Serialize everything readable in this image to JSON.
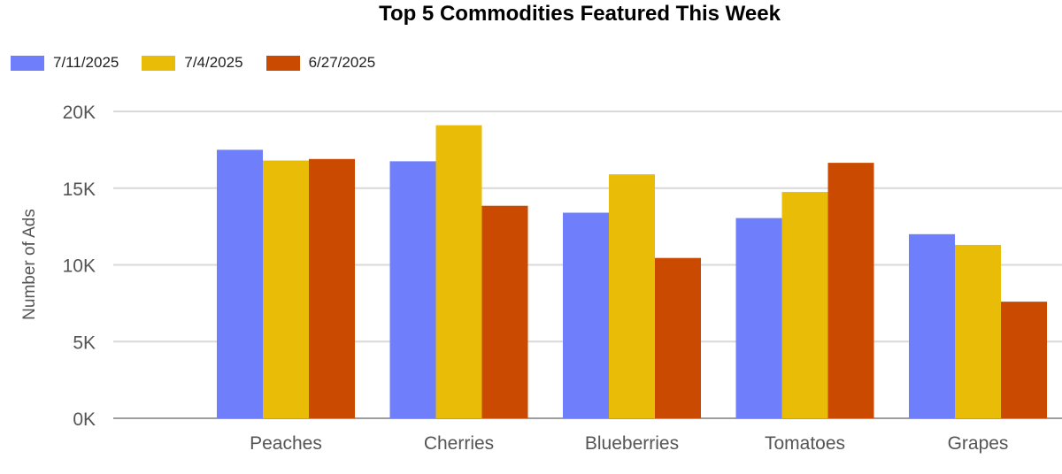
{
  "chart_data": {
    "type": "bar",
    "title": "Top 5 Commodities Featured This Week",
    "xlabel": "",
    "ylabel": "Number of Ads",
    "categories": [
      "Peaches",
      "Cherries",
      "Blueberries",
      "Tomatoes",
      "Grapes"
    ],
    "series": [
      {
        "name": "7/11/2025",
        "color": "#6f7ffb",
        "values": [
          17500,
          16750,
          13400,
          13050,
          12000
        ]
      },
      {
        "name": "7/4/2025",
        "color": "#e8bc07",
        "values": [
          16800,
          19100,
          15900,
          14750,
          11300
        ]
      },
      {
        "name": "6/27/2025",
        "color": "#c94a00",
        "values": [
          16900,
          13850,
          10450,
          16650,
          7600
        ]
      }
    ],
    "ylim": [
      0,
      20000
    ],
    "yticks": [
      0,
      5000,
      10000,
      15000,
      20000
    ],
    "ytick_labels": [
      "0K",
      "5K",
      "10K",
      "15K",
      "20K"
    ],
    "grid": true,
    "legend_position": "top-left"
  }
}
